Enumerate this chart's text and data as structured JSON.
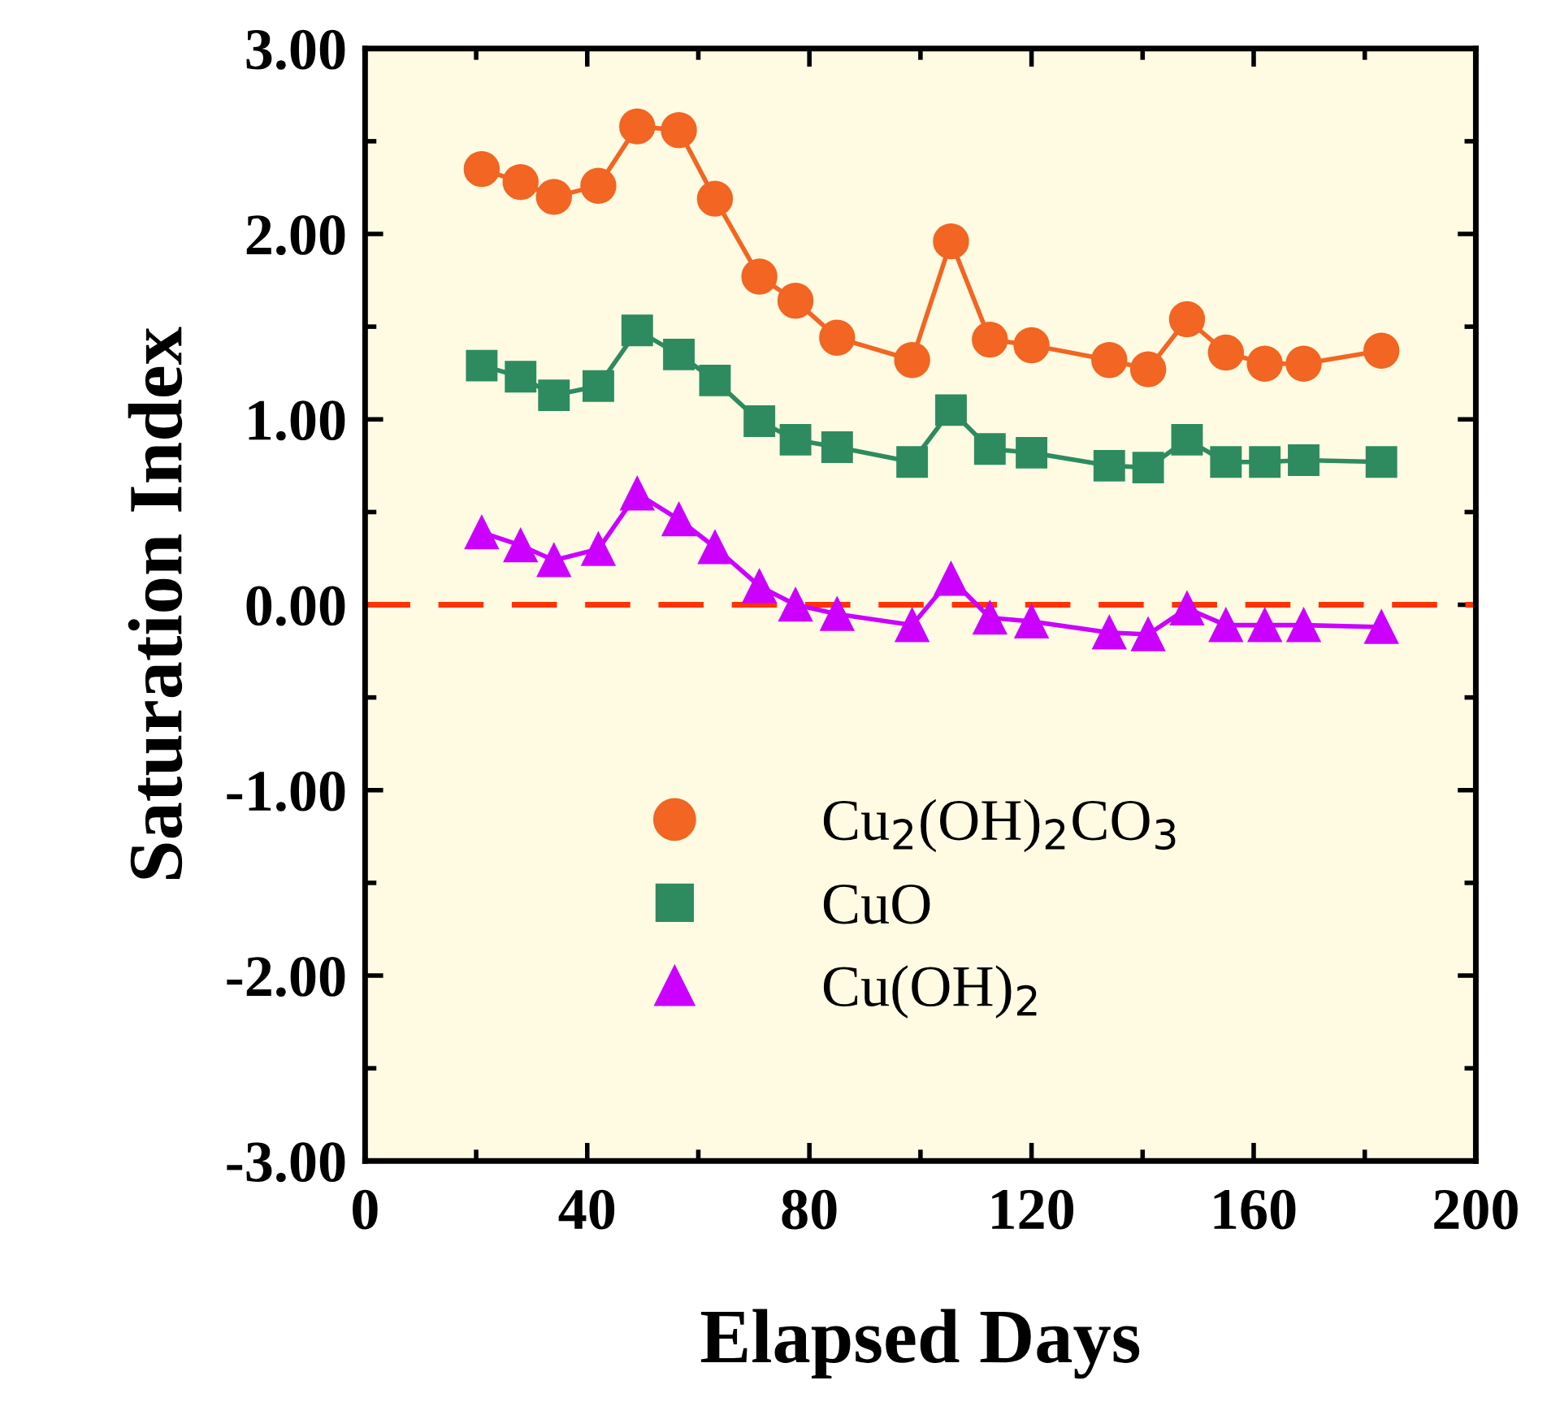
{
  "chart_data": {
    "type": "line",
    "xlabel": "Elapsed Days",
    "ylabel": "Saturation Index",
    "x": [
      21,
      28,
      34,
      42,
      49,
      56.5,
      63,
      71,
      77.5,
      85,
      98.5,
      105.5,
      112.5,
      120,
      134,
      141,
      148,
      155,
      162,
      169,
      183
    ],
    "series": [
      {
        "name": "Cu$_{2}$(OH)$_{2}$CO$_{3}$",
        "color": "#f26522",
        "marker": "circle",
        "values": [
          2.35,
          2.28,
          2.2,
          2.26,
          2.58,
          2.56,
          2.19,
          1.77,
          1.64,
          1.44,
          1.32,
          1.96,
          1.43,
          1.4,
          1.32,
          1.27,
          1.54,
          1.36,
          1.3,
          1.3,
          1.37
        ]
      },
      {
        "name": "CuO",
        "color": "#2e8b5f",
        "marker": "square",
        "values": [
          1.29,
          1.23,
          1.13,
          1.18,
          1.48,
          1.35,
          1.21,
          0.99,
          0.89,
          0.85,
          0.77,
          1.05,
          0.84,
          0.82,
          0.75,
          0.74,
          0.89,
          0.77,
          0.77,
          0.78,
          0.77
        ]
      },
      {
        "name": "Cu(OH)$_{2}$",
        "color": "#cc00ff",
        "marker": "triangle",
        "values": [
          0.39,
          0.32,
          0.24,
          0.3,
          0.6,
          0.46,
          0.31,
          0.1,
          0.0,
          -0.05,
          -0.11,
          0.14,
          -0.07,
          -0.09,
          -0.15,
          -0.16,
          -0.02,
          -0.11,
          -0.11,
          -0.11,
          -0.12
        ]
      }
    ],
    "xlim": [
      0,
      200
    ],
    "xticks": [
      0,
      40,
      80,
      120,
      160,
      200
    ],
    "ylim": [
      -3,
      3
    ],
    "yticks": [
      {
        "value": -3,
        "label": "-3.00"
      },
      {
        "value": -2,
        "label": "-2.00"
      },
      {
        "value": -1,
        "label": "-1.00"
      },
      {
        "value": 0,
        "label": "0.00"
      },
      {
        "value": 1,
        "label": "1.00"
      },
      {
        "value": 2,
        "label": "2.00"
      },
      {
        "value": 3,
        "label": "3.00"
      }
    ],
    "ref_lines": [
      {
        "axis": "y",
        "value": 0,
        "color": "#ff3300",
        "line_style": "dashed"
      }
    ],
    "grid": false,
    "legend": "bottom"
  }
}
